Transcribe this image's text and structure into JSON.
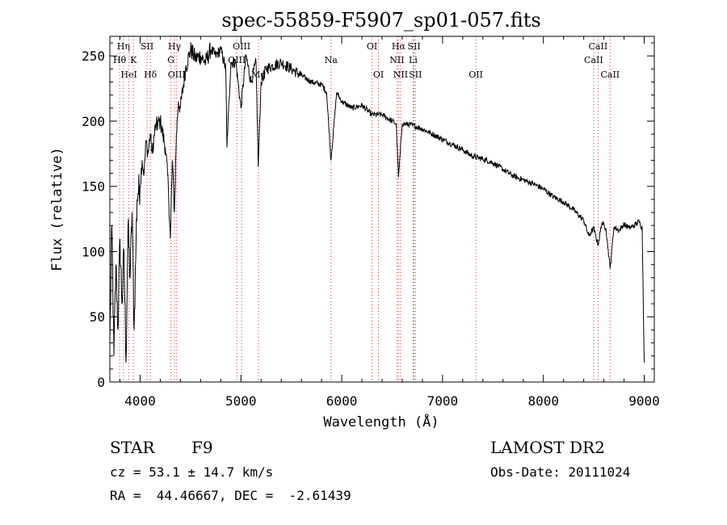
{
  "chart_data": {
    "type": "line",
    "title": "spec-55859-F5907_sp01-057.fits",
    "xlabel": "Wavelength (Å)",
    "ylabel": "Flux (relative)",
    "xlim": [
      3700,
      9100
    ],
    "ylim": [
      0,
      265
    ],
    "x_ticks": [
      4000,
      5000,
      6000,
      7000,
      8000,
      9000
    ],
    "y_ticks": [
      0,
      50,
      100,
      150,
      200,
      250
    ],
    "x_tick_labels": [
      "4000",
      "5000",
      "6000",
      "7000",
      "8000",
      "9000"
    ],
    "y_tick_labels": [
      "0",
      "50",
      "100",
      "150",
      "200",
      "250"
    ],
    "series": [
      {
        "name": "spectrum",
        "color": "#000000",
        "x": [
          3700,
          3720,
          3740,
          3760,
          3780,
          3800,
          3820,
          3840,
          3860,
          3880,
          3900,
          3920,
          3940,
          3960,
          3970,
          3980,
          4000,
          4020,
          4040,
          4060,
          4080,
          4100,
          4120,
          4150,
          4200,
          4250,
          4280,
          4300,
          4320,
          4340,
          4360,
          4380,
          4400,
          4450,
          4500,
          4550,
          4600,
          4650,
          4700,
          4750,
          4800,
          4850,
          4861,
          4900,
          4950,
          5000,
          5050,
          5100,
          5150,
          5172,
          5200,
          5250,
          5300,
          5400,
          5500,
          5600,
          5700,
          5800,
          5850,
          5893,
          5950,
          6000,
          6100,
          6200,
          6300,
          6400,
          6500,
          6540,
          6563,
          6600,
          6700,
          6800,
          6900,
          7000,
          7100,
          7200,
          7300,
          7400,
          7500,
          7600,
          7700,
          7800,
          7900,
          8000,
          8100,
          8200,
          8300,
          8400,
          8450,
          8498,
          8542,
          8580,
          8620,
          8662,
          8700,
          8750,
          8800,
          8850,
          8900,
          8950,
          8980,
          9000
        ],
        "values": [
          30,
          120,
          20,
          90,
          40,
          110,
          60,
          100,
          15,
          120,
          80,
          130,
          40,
          110,
          140,
          145,
          150,
          170,
          160,
          185,
          175,
          190,
          175,
          195,
          200,
          180,
          150,
          110,
          170,
          130,
          190,
          215,
          210,
          240,
          255,
          248,
          250,
          245,
          255,
          250,
          255,
          240,
          180,
          245,
          245,
          210,
          250,
          230,
          245,
          165,
          230,
          240,
          242,
          245,
          240,
          235,
          230,
          228,
          222,
          170,
          222,
          215,
          210,
          212,
          205,
          205,
          200,
          198,
          157,
          198,
          197,
          194,
          190,
          186,
          182,
          178,
          173,
          171,
          168,
          163,
          158,
          155,
          152,
          148,
          142,
          138,
          132,
          124,
          112,
          118,
          105,
          122,
          118,
          87,
          119,
          116,
          121,
          118,
          120,
          123,
          118,
          15
        ]
      }
    ],
    "line_markers": [
      {
        "label": "Hη",
        "x": 3835,
        "row": 0
      },
      {
        "label": "Hθ",
        "x": 3797,
        "row": 1
      },
      {
        "label": "HeI",
        "x": 3889,
        "row": 2
      },
      {
        "label": "K",
        "x": 3934,
        "row": 1
      },
      {
        "label": "SII",
        "x": 4069,
        "row": 0
      },
      {
        "label": "Hδ",
        "x": 4102,
        "row": 2
      },
      {
        "label": "Hγ",
        "x": 4341,
        "row": 0
      },
      {
        "label": "G",
        "x": 4305,
        "row": 1
      },
      {
        "label": "OIII",
        "x": 4363,
        "row": 2
      },
      {
        "label": "OIII",
        "x": 5007,
        "row": 0
      },
      {
        "label": "OIII",
        "x": 4959,
        "row": 1
      },
      {
        "label": "Mg",
        "x": 5175,
        "row": 2
      },
      {
        "label": "Na",
        "x": 5893,
        "row": 1
      },
      {
        "label": "OI",
        "x": 6300,
        "row": 0
      },
      {
        "label": "OI",
        "x": 6364,
        "row": 2
      },
      {
        "label": "Hα",
        "x": 6563,
        "row": 0
      },
      {
        "label": "NII",
        "x": 6548,
        "row": 1
      },
      {
        "label": "NII",
        "x": 6584,
        "row": 2
      },
      {
        "label": "SII",
        "x": 6717,
        "row": 0
      },
      {
        "label": "Li",
        "x": 6708,
        "row": 1
      },
      {
        "label": "SII",
        "x": 6731,
        "row": 2
      },
      {
        "label": "OII",
        "x": 7330,
        "row": 2
      },
      {
        "label": "CaII",
        "x": 8542,
        "row": 0
      },
      {
        "label": "CaII",
        "x": 8498,
        "row": 1
      },
      {
        "label": "CaII",
        "x": 8662,
        "row": 2
      }
    ]
  },
  "info": {
    "object_class": "STAR",
    "subclass": "F9",
    "survey": "LAMOST DR2",
    "redshift_text": "cz = 53.1 ± 14.7 km/s",
    "obs_date": "Obs-Date: 20111024",
    "coords": "RA =  44.46667, DEC =  -2.61439"
  }
}
